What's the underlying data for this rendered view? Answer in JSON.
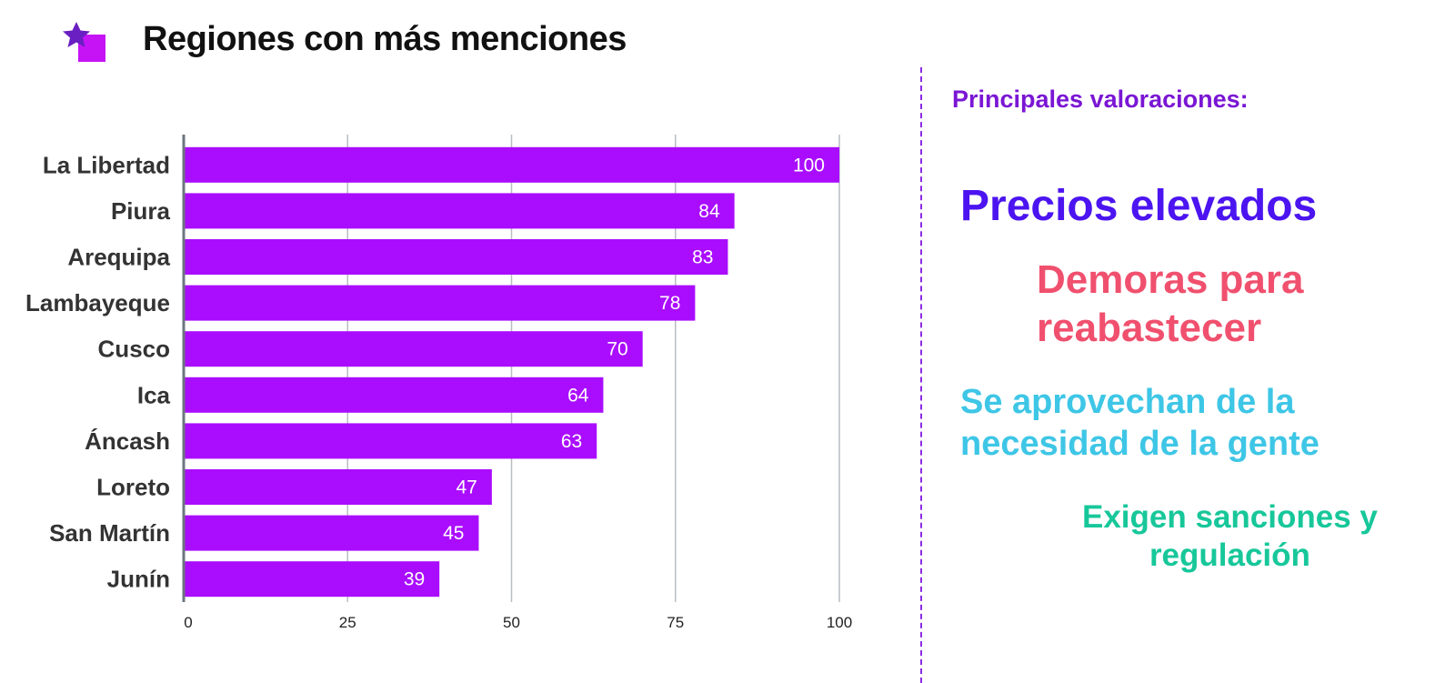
{
  "title": "Regiones con más menciones",
  "logo_colors": {
    "star": "#6a1fc2",
    "square": "#c613f5"
  },
  "chart_data": {
    "type": "bar",
    "orientation": "horizontal",
    "categories": [
      "La Libertad",
      "Piura",
      "Arequipa",
      "Lambayeque",
      "Cusco",
      "Ica",
      "Áncash",
      "Loreto",
      "San Martín",
      "Junín"
    ],
    "values": [
      100,
      84,
      83,
      78,
      70,
      64,
      63,
      47,
      45,
      39
    ],
    "xlim": [
      0,
      100
    ],
    "xticks": [
      0,
      25,
      50,
      75,
      100
    ],
    "grid": true,
    "data_labels": true,
    "bar_color": "#aa0dfe",
    "xlabel": "",
    "ylabel": ""
  },
  "valoraciones": {
    "heading": "Principales valoraciones:",
    "heading_color": "#7a16d4",
    "items": [
      {
        "lines": [
          "Precios elevados"
        ],
        "color": "#4b14f0"
      },
      {
        "lines": [
          "Demoras para",
          "reabastecer"
        ],
        "color": "#f0506e"
      },
      {
        "lines": [
          "Se aprovechan de la",
          "necesidad de la gente"
        ],
        "color": "#3ec6e6"
      },
      {
        "lines": [
          "Exigen sanciones y",
          "regulación"
        ],
        "color": "#17c79a"
      }
    ]
  }
}
